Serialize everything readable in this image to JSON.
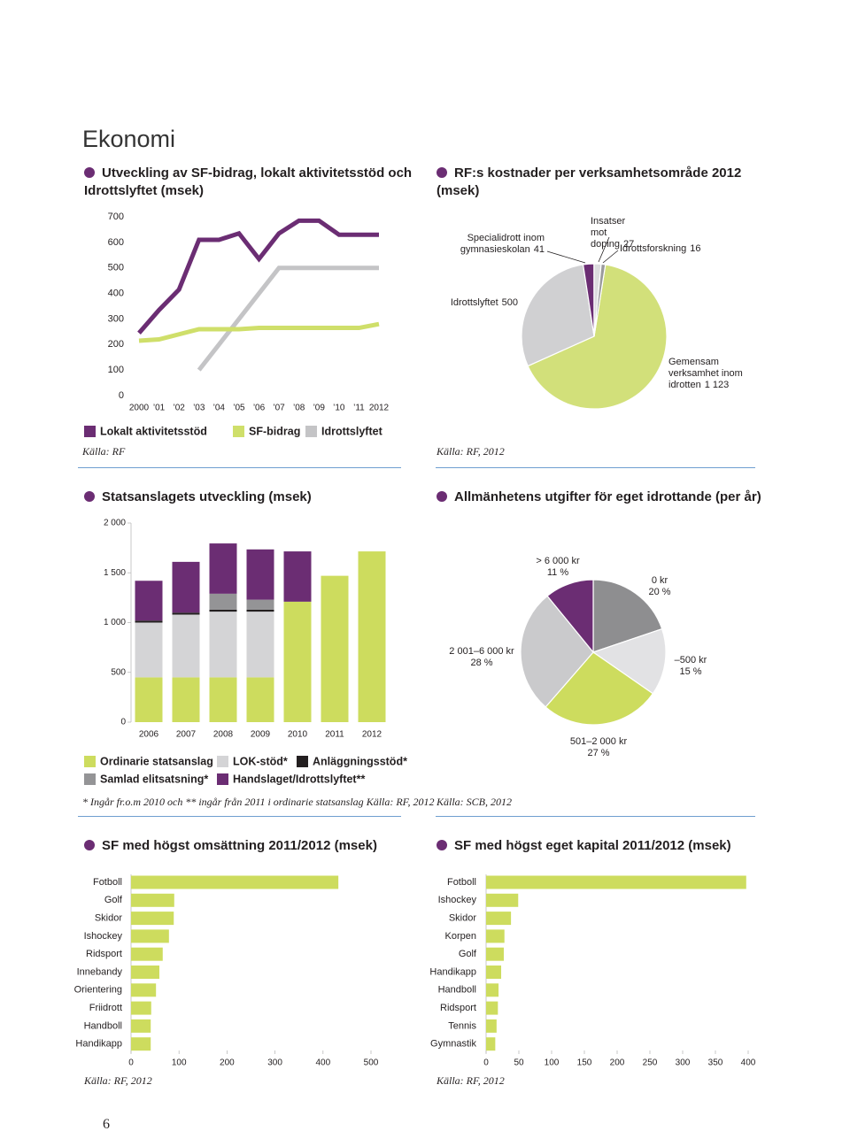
{
  "title": "Ekonomi",
  "page_number": 6,
  "chart_data": [
    {
      "type": "line",
      "title": "Utveckling av SF-bidrag, lokalt aktivitetsstöd och Idrottslyftet (msek)",
      "categories": [
        "2000",
        "’01",
        "’02",
        "’03",
        "’04",
        "’05",
        "’06",
        "’07",
        "’08",
        "’09",
        "’10",
        "’11",
        "2012"
      ],
      "series": [
        {
          "name": "Lokalt aktivitetsstöd",
          "color": "#6b2d73",
          "values": [
            245,
            335,
            415,
            610,
            610,
            635,
            535,
            635,
            685,
            685,
            630,
            630,
            630
          ]
        },
        {
          "name": "SF-bidrag",
          "color": "#cfdf6a",
          "values": [
            215,
            220,
            240,
            260,
            260,
            260,
            265,
            265,
            265,
            265,
            265,
            265,
            280
          ]
        },
        {
          "name": "Idrottslyftet",
          "color": "#c4c4c6",
          "values": [
            null,
            null,
            null,
            100,
            200,
            300,
            400,
            500,
            500,
            500,
            500,
            500,
            500
          ]
        }
      ],
      "ylim": [
        0,
        700
      ],
      "yticks": [
        0,
        100,
        200,
        300,
        400,
        500,
        600,
        700
      ],
      "grid": false,
      "source": "Källa: RF"
    },
    {
      "type": "pie",
      "title": "RF:s kostnader per verksamhetsområde 2012 (msek)",
      "categories": [
        "Gemensam verksamhet inom idrotten",
        "Idrottslyftet",
        "Specialidrott inom gymnasieskolan",
        "Insatser mot doping",
        "Idrottsforskning"
      ],
      "values": [
        1123,
        500,
        41,
        27,
        16
      ],
      "value_labels": [
        "1 123",
        "500",
        "41",
        "27",
        "16"
      ],
      "colors": [
        "#d2e07a",
        "#d0d0d2",
        "#6b2d73",
        "#dcdcde",
        "#9a9a9c"
      ],
      "source": "Källa: RF, 2012"
    },
    {
      "type": "stacked_bar",
      "title": "Statsanslagets utveckling (msek)",
      "categories": [
        "2006",
        "2007",
        "2008",
        "2009",
        "2010",
        "2011",
        "2012"
      ],
      "series": [
        {
          "name": "Ordinarie statsanslag",
          "color": "#cddc5e",
          "values": [
            450,
            450,
            450,
            450,
            1210,
            1470,
            1715
          ]
        },
        {
          "name": "LOK-stöd*",
          "color": "#d4d4d6",
          "values": [
            550,
            630,
            660,
            660,
            0,
            0,
            0
          ]
        },
        {
          "name": "Anläggningsstöd*",
          "color": "#231f20",
          "values": [
            20,
            20,
            20,
            20,
            0,
            0,
            0
          ]
        },
        {
          "name": "Samlad elitsatsning*",
          "color": "#949496",
          "values": [
            0,
            0,
            160,
            100,
            0,
            0,
            0
          ]
        },
        {
          "name": "Handslaget/Idrottslyftet**",
          "color": "#6b2d73",
          "values": [
            400,
            510,
            505,
            505,
            505,
            0,
            0
          ]
        }
      ],
      "ylim": [
        0,
        2000
      ],
      "yticks": [
        0,
        500,
        {
          "value": 1000,
          "label": "1 000"
        },
        {
          "value": 1500,
          "label": "1 500"
        },
        {
          "value": 2000,
          "label": "2 000"
        }
      ],
      "note": "* Ingår fr.o.m 2010 och ** ingår från 2011 i ordinarie statsanslag",
      "source": "Källa: RF, 2012"
    },
    {
      "type": "pie",
      "title": "Allmänhetens utgifter för eget idrottande (per år)",
      "categories": [
        "0 kr",
        "–500 kr",
        "501–2 000 kr",
        "2 001–6 000 kr",
        "> 6 000 kr"
      ],
      "values": [
        20,
        15,
        27,
        28,
        11
      ],
      "value_labels": [
        "20 %",
        "15 %",
        "27 %",
        "28 %",
        "11 %"
      ],
      "colors": [
        "#8e8e90",
        "#e2e2e4",
        "#cddc5e",
        "#cacacc",
        "#6b2d73"
      ],
      "source": "Källa: SCB, 2012"
    },
    {
      "type": "hbar",
      "title": "SF med högst omsättning 2011/2012 (msek)",
      "categories": [
        "Fotboll",
        "Golf",
        "Skidor",
        "Ishockey",
        "Ridsport",
        "Innebandy",
        "Orientering",
        "Friidrott",
        "Handboll",
        "Handikapp"
      ],
      "values": [
        432,
        90,
        89,
        79,
        66,
        59,
        52,
        42,
        41,
        41
      ],
      "color": "#cddc5e",
      "xlim": [
        0,
        500
      ],
      "xticks": [
        0,
        100,
        200,
        300,
        400,
        500
      ],
      "source": "Källa: RF, 2012"
    },
    {
      "type": "hbar",
      "title": "SF med högst eget kapital 2011/2012 (msek)",
      "categories": [
        "Fotboll",
        "Ishockey",
        "Skidor",
        "Korpen",
        "Golf",
        "Handikapp",
        "Handboll",
        "Ridsport",
        "Tennis",
        "Gymnastik"
      ],
      "values": [
        397,
        49,
        38,
        28,
        27,
        23,
        19,
        18,
        16,
        14
      ],
      "color": "#cddc5e",
      "xlim": [
        0,
        400
      ],
      "xticks": [
        0,
        50,
        100,
        150,
        200,
        250,
        300,
        350,
        400
      ],
      "source": "Källa: RF, 2012"
    }
  ]
}
